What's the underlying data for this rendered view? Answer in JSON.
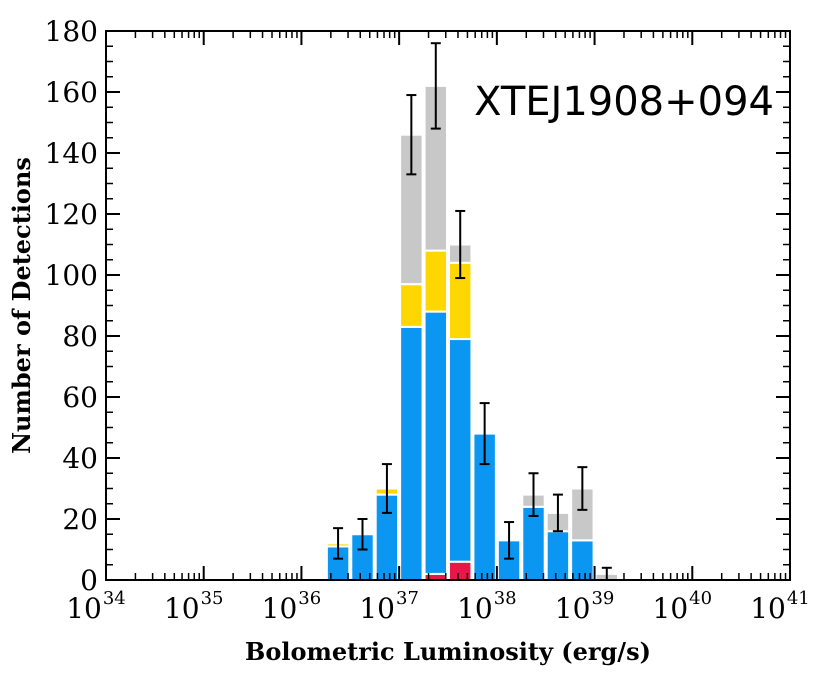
{
  "chart_data": {
    "type": "bar",
    "stacked": true,
    "annotation": "XTEJ1908+094",
    "xlabel": "Bolometric Luminosity (erg/s)",
    "ylabel": "Number of Detections",
    "xscale": "log",
    "xlim_exponent": [
      34,
      41
    ],
    "xtick_exponents": [
      34,
      35,
      36,
      37,
      38,
      39,
      40,
      41
    ],
    "xtick_base": "10",
    "ylim": [
      0,
      180
    ],
    "yticks": [
      0,
      20,
      40,
      60,
      80,
      100,
      120,
      140,
      160,
      180
    ],
    "bin_width_log": 0.25,
    "bin_left_edges_log": [
      36.25,
      36.5,
      36.75,
      37.0,
      37.25,
      37.5,
      37.75,
      38.0,
      38.25,
      38.5,
      38.75,
      39.0
    ],
    "series": [
      {
        "color": "#e8174a",
        "values": [
          0,
          0,
          0,
          0,
          2,
          6,
          0,
          0,
          0,
          0,
          0,
          0
        ]
      },
      {
        "color": "#0b96f2",
        "values": [
          11,
          15,
          28,
          83,
          86,
          73,
          48,
          13,
          24,
          16,
          13,
          0
        ]
      },
      {
        "color": "#ffd700",
        "values": [
          1,
          0,
          2,
          14,
          20,
          25,
          0,
          0,
          0,
          0,
          0,
          0
        ]
      },
      {
        "color": "#c8c8c8",
        "values": [
          0,
          0,
          0,
          49,
          54,
          6,
          0,
          0,
          4,
          6,
          17,
          2
        ]
      }
    ],
    "totals": [
      12,
      15,
      30,
      146,
      162,
      110,
      48,
      13,
      28,
      22,
      30,
      2
    ],
    "errors": [
      5,
      5,
      8,
      13,
      14,
      11,
      10,
      6,
      7,
      6,
      7,
      2
    ]
  }
}
